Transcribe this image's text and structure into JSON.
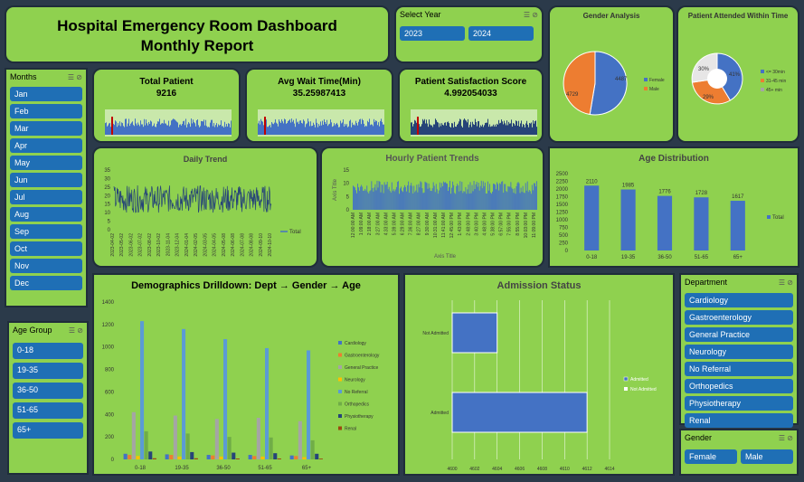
{
  "header": {
    "line1": "Hospital Emergency Room Dashboard",
    "line2": "Monthly Report"
  },
  "year_slicer": {
    "title": "Select Year",
    "options": [
      "2023",
      "2024"
    ]
  },
  "months_slicer": {
    "title": "Months",
    "items": [
      "Jan",
      "Feb",
      "Mar",
      "Apr",
      "May",
      "Jun",
      "Jul",
      "Aug",
      "Sep",
      "Oct",
      "Nov",
      "Dec"
    ]
  },
  "age_slicer": {
    "title": "Age Group",
    "items": [
      "0-18",
      "19-35",
      "36-50",
      "51-65",
      "65+"
    ]
  },
  "dept_slicer": {
    "title": "Department",
    "items": [
      "Cardiology",
      "Gastroenterology",
      "General Practice",
      "Neurology",
      "No Referral",
      "Orthopedics",
      "Physiotherapy",
      "Renal"
    ]
  },
  "gender_slicer": {
    "title": "Gender",
    "items": [
      "Female",
      "Male"
    ]
  },
  "kpis": [
    {
      "label": "Total Patient",
      "value": "9216"
    },
    {
      "label": "Avg Wait Time(Min)",
      "value": "35.25987413"
    },
    {
      "label": "Patient Satisfaction Score",
      "value": "4.992054033"
    }
  ],
  "gender_analysis": {
    "title": "Gender Analysis",
    "chart_data": {
      "type": "pie",
      "labels": [
        "Female",
        "Male"
      ],
      "values": [
        4487,
        4729
      ],
      "colors": [
        "#4472c4",
        "#ed7d31"
      ]
    }
  },
  "attended_within": {
    "title": "Patient  Attended Within Time",
    "chart_data": {
      "type": "pie",
      "labels": [
        "<= 30min",
        "31-45 min",
        "45+ min"
      ],
      "values": [
        41,
        29,
        30
      ],
      "value_labels": [
        "41%",
        "29%",
        "30%"
      ],
      "colors": [
        "#4472c4",
        "#ed7d31",
        "#a5a5a5"
      ]
    }
  },
  "daily_trend": {
    "title": "Daily Trend",
    "legend": "Total",
    "chart_data": {
      "type": "line",
      "ylim": [
        0,
        35
      ],
      "yticks": [
        "0",
        "5",
        "10",
        "15",
        "20",
        "25",
        "30",
        "35"
      ],
      "x_ticks": [
        "2023-04-02",
        "2023-05-02",
        "2023-06-02",
        "2023-07-02",
        "2023-08-02",
        "2023-10-02",
        "2023-11-04",
        "2023-12-04",
        "2024-01-04",
        "2024-02-05",
        "2024-03-05",
        "2024-04-05",
        "2024-05-08",
        "2024-06-08",
        "2024-07-08",
        "2024-08-08",
        "2024-09-10",
        "2024-10-10"
      ]
    }
  },
  "hourly_trend": {
    "title": "Hourly Patient Trends",
    "ylabel": "Axis Title",
    "xlabel": "Axis Title",
    "chart_data": {
      "type": "bar",
      "ylim": [
        0,
        15
      ],
      "yticks": [
        "0",
        "5",
        "10",
        "15"
      ],
      "x_ticks": [
        "12:00:00 AM",
        "1:09:00 AM",
        "2:18:00 AM",
        "3:27:00 AM",
        "4:33:00 AM",
        "5:39:00 AM",
        "6:29:00 AM",
        "7:36:00 AM",
        "8:27:00 AM",
        "9:30:00 AM",
        "10:31:00 AM",
        "11:41:00 AM",
        "12:45:00 PM",
        "1:43:00 PM",
        "2:48:00 PM",
        "3:40:00 PM",
        "4:48:00 PM",
        "5:38:00 PM",
        "6:57:00 PM",
        "7:55:00 PM",
        "8:55:00 PM",
        "10:03:00 PM",
        "11:09:00 PM"
      ]
    }
  },
  "age_distribution": {
    "title": "Age Distribution",
    "legend": "Total",
    "chart_data": {
      "type": "bar",
      "categories": [
        "0-18",
        "19-35",
        "36-50",
        "51-65",
        "65+"
      ],
      "values": [
        2110,
        1985,
        1776,
        1728,
        1617
      ],
      "ylim": [
        0,
        2500
      ],
      "yticks": [
        "0",
        "250",
        "500",
        "750",
        "1000",
        "1250",
        "1500",
        "1750",
        "2000",
        "2250",
        "2500"
      ]
    }
  },
  "demographics": {
    "title": "Demographics Drilldown: Dept → Gender → Age",
    "chart_data": {
      "type": "bar",
      "categories": [
        "0-18",
        "19-35",
        "36-50",
        "51-65",
        "65+"
      ],
      "ylim": [
        0,
        1400
      ],
      "yticks": [
        "0",
        "200",
        "400",
        "600",
        "800",
        "1000",
        "1200",
        "1400"
      ],
      "series": [
        {
          "name": "Cardiology",
          "color": "#4472c4",
          "values": [
            50,
            45,
            40,
            40,
            35
          ]
        },
        {
          "name": "Gastroenterology",
          "color": "#ed7d31",
          "values": [
            40,
            40,
            35,
            30,
            30
          ]
        },
        {
          "name": "General Practice",
          "color": "#a5a5a5",
          "values": [
            420,
            390,
            360,
            370,
            340
          ]
        },
        {
          "name": "Neurology",
          "color": "#ffc000",
          "values": [
            30,
            25,
            25,
            25,
            20
          ]
        },
        {
          "name": "No Referral",
          "color": "#5b9bd5",
          "values": [
            1230,
            1160,
            1070,
            990,
            970
          ]
        },
        {
          "name": "Orthopedics",
          "color": "#70ad47",
          "values": [
            250,
            230,
            200,
            195,
            170
          ]
        },
        {
          "name": "Physiotherapy",
          "color": "#264478",
          "values": [
            70,
            65,
            60,
            55,
            50
          ]
        },
        {
          "name": "Renal",
          "color": "#9e480e",
          "values": [
            10,
            10,
            8,
            8,
            7
          ]
        }
      ]
    }
  },
  "admission": {
    "title": "Admission Status",
    "chart_data": {
      "type": "bar",
      "categories": [
        "Not Admitted",
        "Admitted"
      ],
      "values": [
        4604,
        4612
      ],
      "xlim": [
        4600,
        4614
      ],
      "xticks": [
        "4600",
        "4602",
        "4604",
        "4606",
        "4608",
        "4610",
        "4612",
        "4614"
      ],
      "legend": [
        "Admitted",
        "Not Admitted"
      ]
    }
  }
}
